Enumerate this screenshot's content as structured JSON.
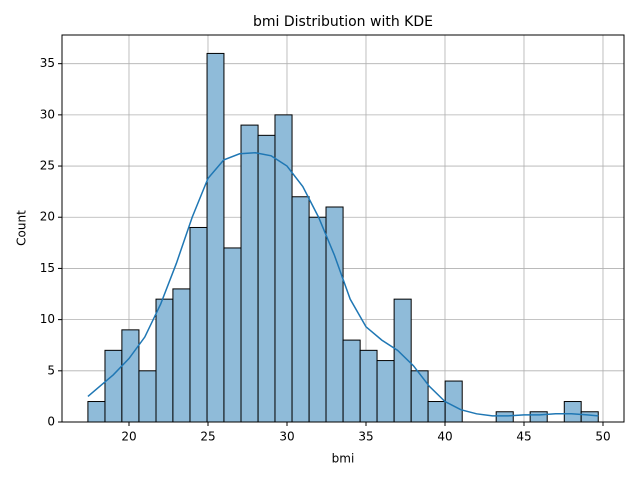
{
  "chart_data": {
    "type": "histogram",
    "title": "bmi Distribution with KDE",
    "x_label": "bmi",
    "y_label": "Count",
    "bins": [
      17.4,
      18.48,
      19.55,
      20.63,
      21.71,
      22.78,
      23.86,
      24.94,
      26.01,
      27.09,
      28.17,
      29.24,
      30.32,
      31.4,
      32.47,
      33.55,
      34.63,
      35.7,
      36.78,
      37.86,
      38.93,
      40.01,
      41.09,
      42.16,
      43.24,
      44.32,
      45.39,
      46.47,
      47.55,
      48.62,
      49.7
    ],
    "values": [
      2,
      7,
      9,
      5,
      12,
      13,
      19,
      36,
      17,
      29,
      28,
      30,
      22,
      20,
      21,
      8,
      7,
      6,
      12,
      5,
      2,
      4,
      0,
      0,
      1,
      0,
      1,
      0,
      2,
      1
    ],
    "color": "#8fbbd9",
    "edge_color": "#000000",
    "kde": {
      "color": "#1f77b4",
      "x": [
        17.4,
        19,
        20,
        21,
        22,
        23,
        24,
        25,
        26,
        27,
        28,
        29,
        30,
        31,
        32,
        33,
        34,
        35,
        36,
        37,
        38,
        39,
        40,
        41,
        42,
        43,
        44,
        45,
        46,
        47,
        48,
        49,
        49.7
      ],
      "values": [
        2.5,
        4.6,
        6.2,
        8.3,
        11.5,
        15.5,
        20,
        23.8,
        25.6,
        26.2,
        26.3,
        26,
        25,
        23,
        20,
        16.3,
        12,
        9.3,
        8,
        7,
        5.5,
        3.5,
        2,
        1.2,
        0.8,
        0.6,
        0.6,
        0.7,
        0.7,
        0.8,
        0.8,
        0.7,
        0.6
      ]
    },
    "xlim": [
      15.76,
      51.33
    ],
    "ylim": [
      0,
      37.8
    ],
    "xticks": [
      20,
      25,
      30,
      35,
      40,
      45,
      50
    ],
    "yticks": [
      0,
      5,
      10,
      15,
      20,
      25,
      30,
      35
    ],
    "grid": true
  }
}
